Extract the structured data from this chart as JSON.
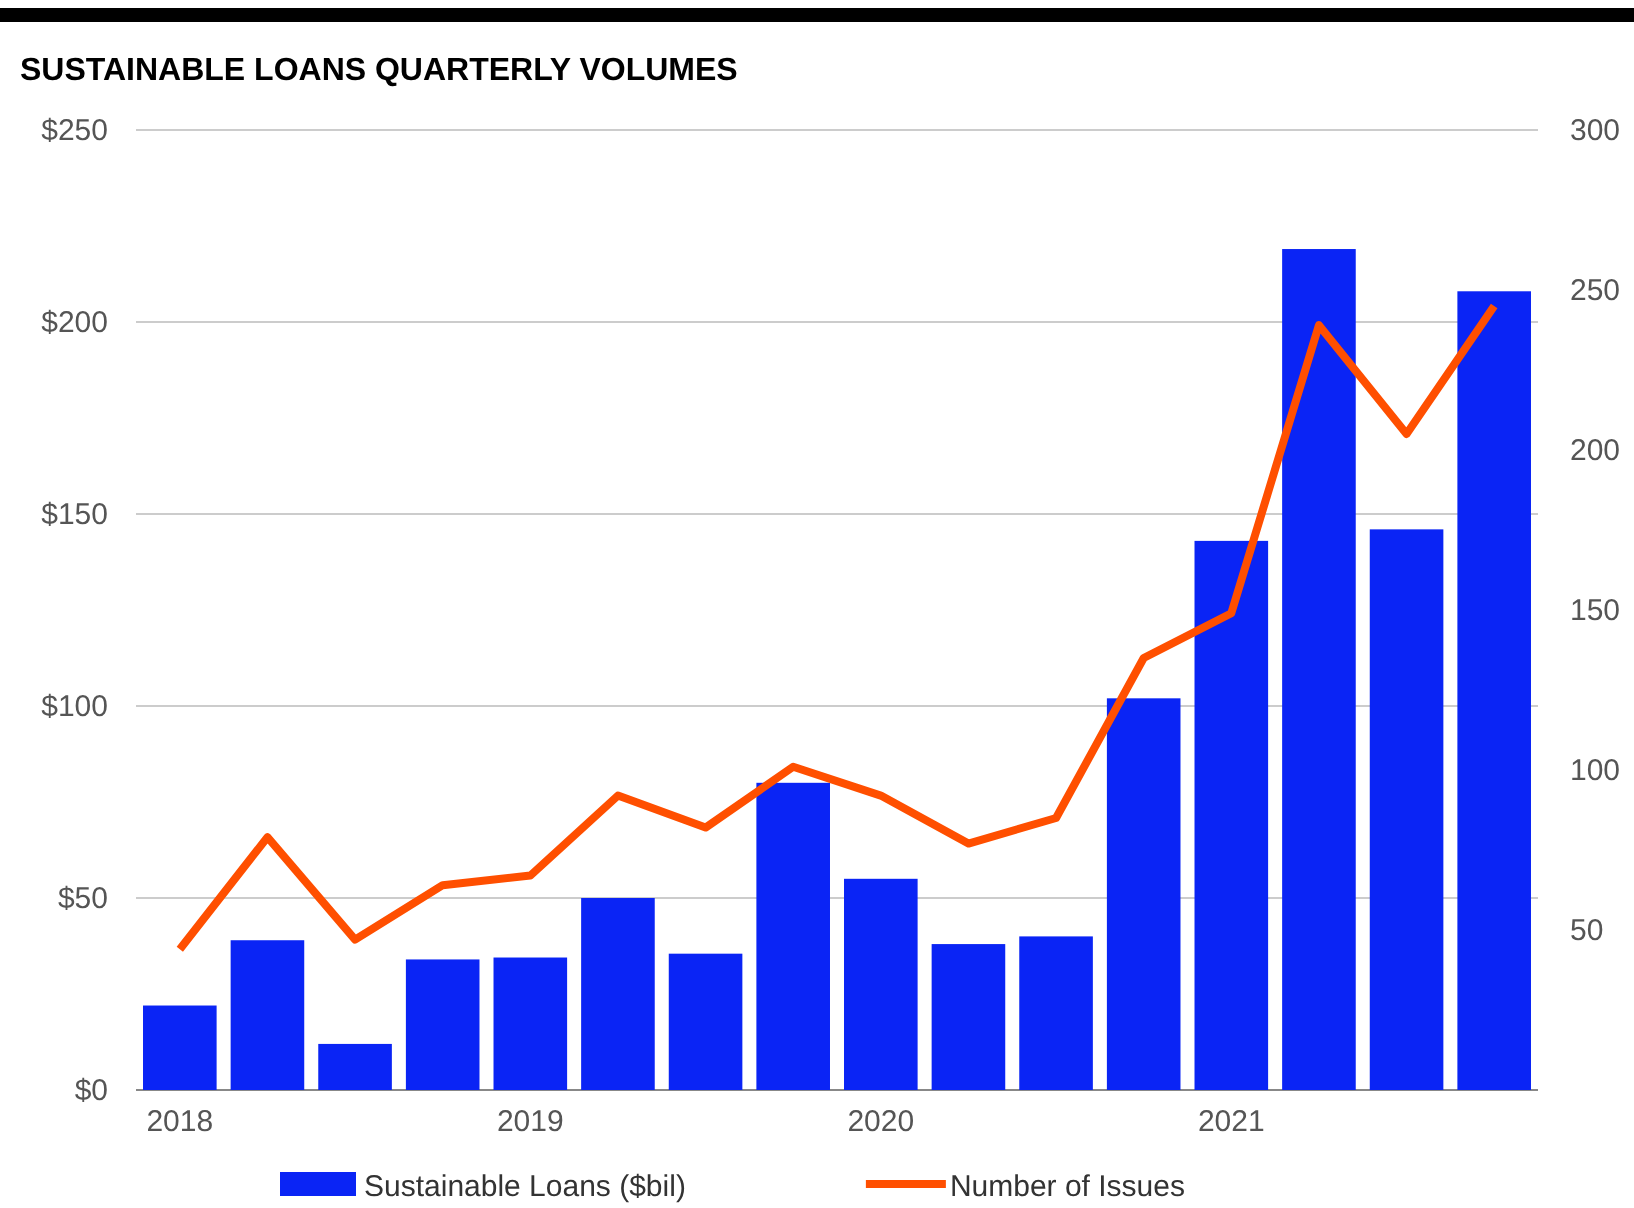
{
  "chart_data": {
    "type": "bar",
    "title": "SUSTAINABLE LOANS QUARTERLY VOLUMES",
    "categories": [
      "2018",
      null,
      null,
      null,
      "2019",
      null,
      null,
      null,
      "2020",
      null,
      null,
      null,
      "2021",
      null,
      null,
      null
    ],
    "series": [
      {
        "name": "Sustainable Loans ($bil)",
        "color": "#0a24f5",
        "values": [
          22,
          39,
          12,
          34,
          34.5,
          50,
          35.5,
          80,
          55,
          38,
          40,
          102,
          143,
          219,
          146,
          208
        ]
      },
      {
        "name": "Number of Issues",
        "type": "line",
        "axis": "y2",
        "color": "#ff4f00",
        "values": [
          44,
          79,
          47,
          64,
          67,
          92,
          82,
          101,
          92,
          77,
          85,
          135,
          149,
          239,
          205,
          245
        ]
      }
    ],
    "ylim": [
      0,
      250
    ],
    "yticks": [
      {
        "value": 0,
        "label": "$0"
      },
      {
        "value": 50,
        "label": "$50"
      },
      {
        "value": 100,
        "label": "$100"
      },
      {
        "value": 150,
        "label": "$150"
      },
      {
        "value": 200,
        "label": "$200"
      },
      {
        "value": 250,
        "label": "$250"
      }
    ],
    "y2lim": [
      0,
      300
    ],
    "y2ticks": [
      50,
      100,
      150,
      200,
      250,
      300
    ],
    "grid": "y",
    "legend": "bottom",
    "marker": "none",
    "line_style": "solid"
  }
}
